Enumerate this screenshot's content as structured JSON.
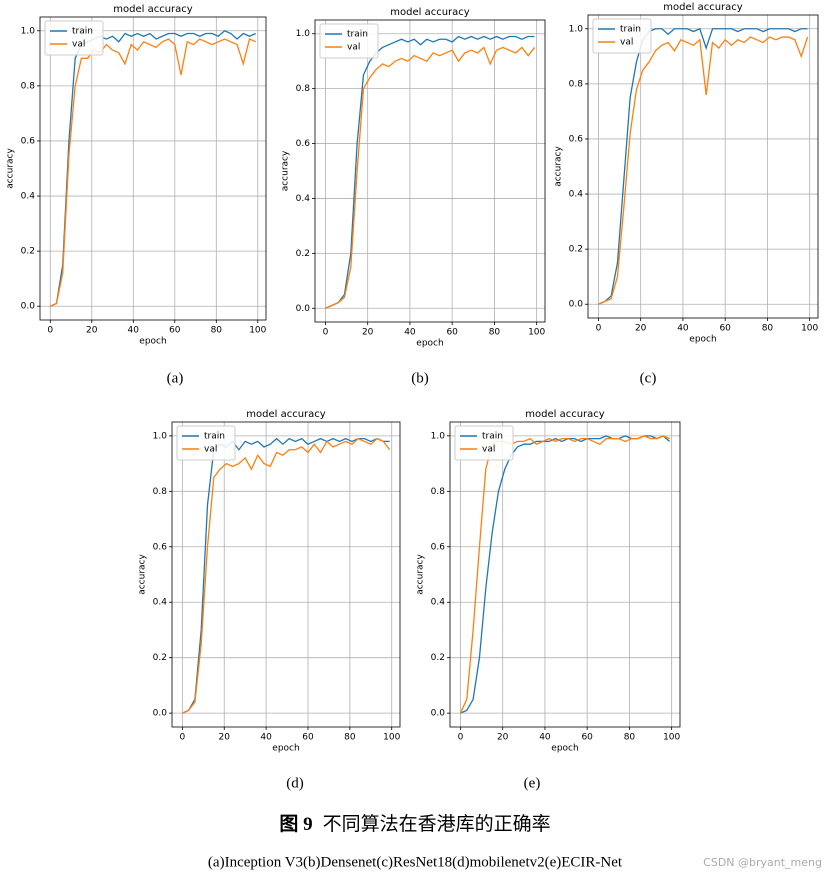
{
  "chart_data": [
    {
      "type": "line",
      "panel_label": "(a)",
      "title": "model accuracy",
      "x_label": "epoch",
      "y_label": "accuracy",
      "legend": "upper left",
      "grid": true,
      "x": [
        0,
        3,
        6,
        9,
        12,
        15,
        18,
        21,
        24,
        27,
        30,
        33,
        36,
        39,
        42,
        45,
        48,
        51,
        54,
        57,
        60,
        63,
        66,
        69,
        72,
        75,
        78,
        81,
        84,
        87,
        90,
        93,
        96,
        99
      ],
      "series": [
        {
          "name": "train",
          "color": "#1f77b4",
          "values": [
            0.0,
            0.01,
            0.15,
            0.6,
            0.9,
            0.95,
            0.96,
            0.97,
            0.98,
            0.97,
            0.98,
            0.96,
            0.99,
            0.98,
            0.99,
            0.98,
            0.99,
            0.97,
            0.98,
            0.99,
            0.99,
            0.98,
            0.99,
            0.99,
            0.98,
            0.99,
            0.99,
            0.98,
            1.0,
            0.99,
            0.97,
            0.99,
            0.98,
            0.99
          ]
        },
        {
          "name": "val",
          "color": "#ff7f0e",
          "values": [
            0.0,
            0.01,
            0.12,
            0.55,
            0.8,
            0.9,
            0.9,
            0.93,
            0.92,
            0.95,
            0.93,
            0.92,
            0.88,
            0.95,
            0.93,
            0.96,
            0.95,
            0.94,
            0.96,
            0.97,
            0.95,
            0.84,
            0.96,
            0.95,
            0.97,
            0.96,
            0.95,
            0.96,
            0.97,
            0.96,
            0.95,
            0.88,
            0.97,
            0.96
          ]
        }
      ],
      "xlim": [
        -4.95,
        103.95
      ],
      "xticks": [
        0,
        20,
        40,
        60,
        80,
        100
      ],
      "ylim": [
        -0.05,
        1.05
      ],
      "yticks": [
        {
          "value": 0,
          "label": "0.0"
        },
        0.2,
        0.4,
        0.6,
        0.8,
        {
          "value": 1,
          "label": "1.0"
        }
      ]
    },
    {
      "type": "line",
      "panel_label": "(b)",
      "title": "model accuracy",
      "x_label": "epoch",
      "y_label": "accuracy",
      "legend": "upper left",
      "grid": true,
      "x": [
        0,
        3,
        6,
        9,
        12,
        15,
        18,
        21,
        24,
        27,
        30,
        33,
        36,
        39,
        42,
        45,
        48,
        51,
        54,
        57,
        60,
        63,
        66,
        69,
        72,
        75,
        78,
        81,
        84,
        87,
        90,
        93,
        96,
        99
      ],
      "series": [
        {
          "name": "train",
          "color": "#1f77b4",
          "values": [
            0.0,
            0.01,
            0.02,
            0.05,
            0.2,
            0.6,
            0.85,
            0.9,
            0.93,
            0.95,
            0.96,
            0.97,
            0.98,
            0.97,
            0.98,
            0.96,
            0.98,
            0.97,
            0.98,
            0.98,
            0.97,
            0.99,
            0.98,
            0.99,
            0.98,
            0.99,
            0.98,
            0.99,
            0.98,
            0.99,
            0.99,
            0.98,
            0.99,
            0.99
          ]
        },
        {
          "name": "val",
          "color": "#ff7f0e",
          "values": [
            0.0,
            0.01,
            0.02,
            0.04,
            0.15,
            0.5,
            0.8,
            0.84,
            0.87,
            0.89,
            0.88,
            0.9,
            0.91,
            0.9,
            0.92,
            0.91,
            0.9,
            0.93,
            0.92,
            0.93,
            0.94,
            0.9,
            0.93,
            0.94,
            0.93,
            0.95,
            0.89,
            0.94,
            0.95,
            0.94,
            0.93,
            0.95,
            0.92,
            0.95
          ]
        }
      ],
      "xlim": [
        -4.95,
        103.95
      ],
      "xticks": [
        0,
        20,
        40,
        60,
        80,
        100
      ],
      "ylim": [
        -0.05,
        1.05
      ],
      "yticks": [
        {
          "value": 0,
          "label": "0.0"
        },
        0.2,
        0.4,
        0.6,
        0.8,
        {
          "value": 1,
          "label": "1.0"
        }
      ]
    },
    {
      "type": "line",
      "panel_label": "(c)",
      "title": "model accuracy",
      "x_label": "epoch",
      "y_label": "accuracy",
      "legend": "upper left",
      "grid": true,
      "x": [
        0,
        3,
        6,
        9,
        12,
        15,
        18,
        21,
        24,
        27,
        30,
        33,
        36,
        39,
        42,
        45,
        48,
        51,
        54,
        57,
        60,
        63,
        66,
        69,
        72,
        75,
        78,
        81,
        84,
        87,
        90,
        93,
        96,
        99
      ],
      "series": [
        {
          "name": "train",
          "color": "#1f77b4",
          "values": [
            0.0,
            0.01,
            0.03,
            0.15,
            0.45,
            0.75,
            0.88,
            0.96,
            0.99,
            1.0,
            1.0,
            0.98,
            1.0,
            1.0,
            1.0,
            0.99,
            1.0,
            0.93,
            1.0,
            1.0,
            1.0,
            1.0,
            0.99,
            1.0,
            1.0,
            1.0,
            0.99,
            1.0,
            1.0,
            1.0,
            1.0,
            0.99,
            1.0,
            1.0
          ]
        },
        {
          "name": "val",
          "color": "#ff7f0e",
          "values": [
            0.0,
            0.01,
            0.02,
            0.1,
            0.35,
            0.62,
            0.78,
            0.85,
            0.88,
            0.92,
            0.94,
            0.95,
            0.92,
            0.96,
            0.95,
            0.94,
            0.96,
            0.76,
            0.95,
            0.93,
            0.96,
            0.94,
            0.96,
            0.95,
            0.97,
            0.96,
            0.95,
            0.97,
            0.96,
            0.97,
            0.97,
            0.96,
            0.9,
            0.97
          ]
        }
      ],
      "xlim": [
        -4.95,
        103.95
      ],
      "xticks": [
        0,
        20,
        40,
        60,
        80,
        100
      ],
      "ylim": [
        -0.05,
        1.05
      ],
      "yticks": [
        {
          "value": 0,
          "label": "0.0"
        },
        0.2,
        0.4,
        0.6,
        0.8,
        {
          "value": 1,
          "label": "1.0"
        }
      ]
    },
    {
      "type": "line",
      "panel_label": "(d)",
      "title": "model accuracy",
      "x_label": "epoch",
      "y_label": "accuracy",
      "legend": "upper left",
      "grid": true,
      "x": [
        0,
        3,
        6,
        9,
        12,
        15,
        18,
        21,
        24,
        27,
        30,
        33,
        36,
        39,
        42,
        45,
        48,
        51,
        54,
        57,
        60,
        63,
        66,
        69,
        72,
        75,
        78,
        81,
        84,
        87,
        90,
        93,
        96,
        99
      ],
      "series": [
        {
          "name": "train",
          "color": "#1f77b4",
          "values": [
            0.0,
            0.01,
            0.05,
            0.3,
            0.75,
            0.95,
            0.97,
            0.96,
            0.98,
            0.95,
            0.98,
            0.97,
            0.98,
            0.96,
            0.97,
            0.99,
            0.97,
            0.99,
            0.98,
            0.99,
            0.97,
            0.98,
            0.99,
            0.98,
            0.99,
            0.98,
            0.99,
            0.98,
            0.99,
            0.99,
            0.98,
            0.99,
            0.98,
            0.98
          ]
        },
        {
          "name": "val",
          "color": "#ff7f0e",
          "values": [
            0.0,
            0.01,
            0.04,
            0.25,
            0.6,
            0.85,
            0.88,
            0.9,
            0.89,
            0.9,
            0.92,
            0.88,
            0.93,
            0.9,
            0.89,
            0.94,
            0.93,
            0.95,
            0.95,
            0.96,
            0.94,
            0.97,
            0.94,
            0.98,
            0.96,
            0.97,
            0.98,
            0.97,
            0.99,
            0.98,
            0.97,
            0.99,
            0.98,
            0.95
          ]
        }
      ],
      "xlim": [
        -4.95,
        103.95
      ],
      "xticks": [
        0,
        20,
        40,
        60,
        80,
        100
      ],
      "ylim": [
        -0.05,
        1.05
      ],
      "yticks": [
        {
          "value": 0,
          "label": "0.0"
        },
        0.2,
        0.4,
        0.6,
        0.8,
        {
          "value": 1,
          "label": "1.0"
        }
      ]
    },
    {
      "type": "line",
      "panel_label": "(e)",
      "title": "model accuracy",
      "x_label": "epoch",
      "y_label": "accuracy",
      "legend": "upper left",
      "grid": true,
      "x": [
        0,
        3,
        6,
        9,
        12,
        15,
        18,
        21,
        24,
        27,
        30,
        33,
        36,
        39,
        42,
        45,
        48,
        51,
        54,
        57,
        60,
        63,
        66,
        69,
        72,
        75,
        78,
        81,
        84,
        87,
        90,
        93,
        96,
        99
      ],
      "series": [
        {
          "name": "train",
          "color": "#1f77b4",
          "values": [
            0.0,
            0.01,
            0.05,
            0.2,
            0.45,
            0.65,
            0.8,
            0.88,
            0.93,
            0.96,
            0.97,
            0.97,
            0.98,
            0.98,
            0.98,
            0.99,
            0.98,
            0.99,
            0.99,
            0.98,
            0.99,
            0.99,
            0.99,
            1.0,
            0.99,
            0.99,
            1.0,
            0.99,
            0.99,
            1.0,
            1.0,
            0.99,
            1.0,
            0.98
          ]
        },
        {
          "name": "val",
          "color": "#ff7f0e",
          "values": [
            0.0,
            0.05,
            0.3,
            0.6,
            0.88,
            0.97,
            0.98,
            0.98,
            0.97,
            0.98,
            0.98,
            0.99,
            0.97,
            0.98,
            0.99,
            0.98,
            0.99,
            0.99,
            0.98,
            0.99,
            0.99,
            0.98,
            0.97,
            0.99,
            0.99,
            0.99,
            0.98,
            0.99,
            0.99,
            1.0,
            0.99,
            0.99,
            1.0,
            0.99
          ]
        }
      ],
      "xlim": [
        -4.95,
        103.95
      ],
      "xticks": [
        0,
        20,
        40,
        60,
        80,
        100
      ],
      "ylim": [
        -0.05,
        1.05
      ],
      "yticks": [
        {
          "value": 0,
          "label": "0.0"
        },
        0.2,
        0.4,
        0.6,
        0.8,
        {
          "value": 1,
          "label": "1.0"
        }
      ]
    }
  ],
  "caption": {
    "figure_label": "图 9",
    "title": "不同算法在香港库的正确率",
    "subtitle": "(a)Inception V3(b)Densenet(c)ResNet18(d)mobilenetv2(e)ECIR-Net"
  },
  "watermark": "CSDN @bryant_meng"
}
